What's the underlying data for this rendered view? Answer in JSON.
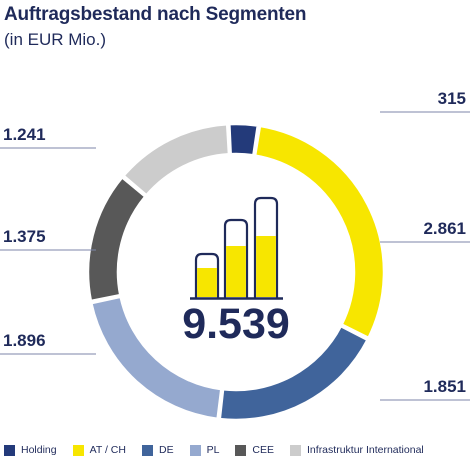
{
  "header": {
    "title": "Auftragsbestand nach Segmenten",
    "subtitle": "(in EUR Mio.)"
  },
  "chart_data": {
    "type": "pie",
    "variant": "donut",
    "title": "Auftragsbestand nach Segmenten",
    "subtitle": "(in EUR Mio.)",
    "center_label": "9.539",
    "center_icon": "bar-chart-icon",
    "legend_position": "bottom",
    "slices": [
      {
        "name": "Holding",
        "value": 315,
        "label": "315",
        "color": "#233a7a"
      },
      {
        "name": "AT / CH",
        "value": 2861,
        "label": "2.861",
        "color": "#f7e600"
      },
      {
        "name": "DE",
        "value": 1851,
        "label": "1.851",
        "color": "#40649b"
      },
      {
        "name": "PL",
        "value": 1896,
        "label": "1.896",
        "color": "#95a9cf"
      },
      {
        "name": "CEE",
        "value": 1375,
        "label": "1.375",
        "color": "#585858"
      },
      {
        "name": "Infrastruktur International",
        "value": 1241,
        "label": "1.241",
        "color": "#cccccc"
      }
    ]
  }
}
